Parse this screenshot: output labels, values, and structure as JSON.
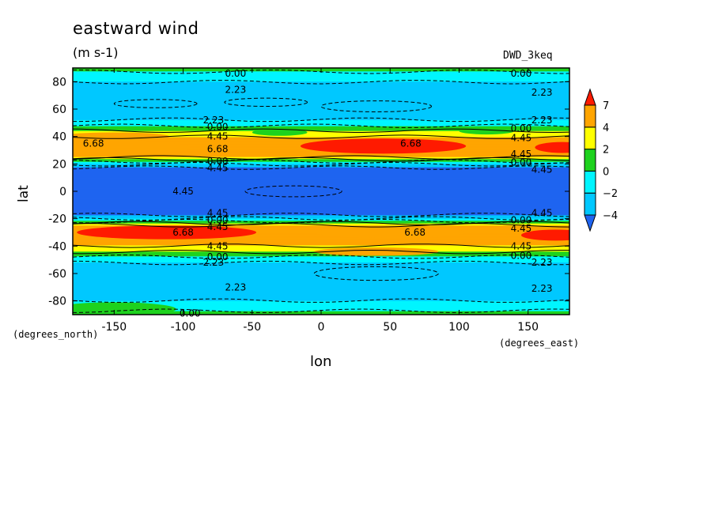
{
  "chart_data": {
    "type": "heatmap",
    "title": "eastward wind",
    "units": "(m s-1)",
    "run_label": "DWD_3keq",
    "xlabel": "lon",
    "ylabel": "lat",
    "x_units": "(degrees_east)",
    "y_units": "(degrees_north)",
    "xlim": [
      -180,
      180
    ],
    "ylim": [
      -90,
      90
    ],
    "x_ticks": [
      -150,
      -100,
      -50,
      0,
      50,
      100,
      150
    ],
    "y_ticks": [
      -80,
      -60,
      -40,
      -20,
      0,
      20,
      40,
      60,
      80
    ],
    "colorbar": {
      "levels": [
        -4,
        -2,
        0,
        2,
        4,
        7
      ],
      "colors": [
        "#1f64f0",
        "#00c8ff",
        "#00f5ff",
        "#1ed21e",
        "#ffff00",
        "#ffa500",
        "#ff1a00"
      ]
    },
    "zonal_profile": {
      "lat": [
        -90,
        -85,
        -80,
        -70,
        -60,
        -55,
        -50,
        -47,
        -45,
        -42,
        -38,
        -35,
        -30,
        -25,
        -22,
        -20,
        -17,
        -12,
        -5,
        0,
        5,
        12,
        17,
        20,
        22,
        25,
        30,
        35,
        38,
        42,
        45,
        47,
        50,
        55,
        60,
        70,
        80,
        85,
        90
      ],
      "value": [
        0.5,
        -0.5,
        -2.0,
        -2.5,
        -3.2,
        -3.0,
        -1.2,
        0.3,
        1.5,
        3.0,
        4.6,
        5.8,
        6.4,
        4.0,
        0.5,
        -2.0,
        -4.3,
        -4.8,
        -5.0,
        -5.0,
        -5.0,
        -4.8,
        -4.3,
        -2.0,
        0.5,
        4.0,
        6.4,
        5.8,
        4.6,
        3.0,
        1.5,
        0.3,
        -1.2,
        -3.0,
        -3.2,
        -2.5,
        -2.0,
        -0.5,
        0.5
      ]
    },
    "contour_labels": [
      {
        "text": "0.00",
        "lon": -62,
        "lat": 86
      },
      {
        "text": "0.00",
        "lon": 145,
        "lat": 86
      },
      {
        "text": "2.23",
        "lon": -62,
        "lat": 74
      },
      {
        "text": "2.23",
        "lon": 160,
        "lat": 72
      },
      {
        "text": "2.23",
        "lon": -78,
        "lat": 52
      },
      {
        "text": "2.23",
        "lon": 160,
        "lat": 52
      },
      {
        "text": "0.00",
        "lon": -75,
        "lat": 47
      },
      {
        "text": "0.00",
        "lon": 145,
        "lat": 46
      },
      {
        "text": "4.45",
        "lon": -75,
        "lat": 40
      },
      {
        "text": "4.45",
        "lon": 145,
        "lat": 39
      },
      {
        "text": "6.68",
        "lon": -165,
        "lat": 35
      },
      {
        "text": "6.68",
        "lon": 65,
        "lat": 35
      },
      {
        "text": "6.68",
        "lon": -75,
        "lat": 31
      },
      {
        "text": "4.45",
        "lon": 145,
        "lat": 27
      },
      {
        "text": "0.00",
        "lon": -75,
        "lat": 22
      },
      {
        "text": "0.00",
        "lon": 145,
        "lat": 21
      },
      {
        "text": "4.45",
        "lon": -75,
        "lat": 17
      },
      {
        "text": "4.45",
        "lon": 160,
        "lat": 16
      },
      {
        "text": "4.45",
        "lon": -100,
        "lat": 0
      },
      {
        "text": "4.45",
        "lon": -75,
        "lat": -16
      },
      {
        "text": "4.45",
        "lon": 160,
        "lat": -16
      },
      {
        "text": "0.00",
        "lon": -75,
        "lat": -21
      },
      {
        "text": "0.00",
        "lon": 145,
        "lat": -21
      },
      {
        "text": "4.45",
        "lon": -75,
        "lat": -26
      },
      {
        "text": "4.45",
        "lon": 145,
        "lat": -27
      },
      {
        "text": "6.68",
        "lon": -100,
        "lat": -30
      },
      {
        "text": "6.68",
        "lon": 68,
        "lat": -30
      },
      {
        "text": "4.45",
        "lon": -75,
        "lat": -40
      },
      {
        "text": "4.45",
        "lon": 145,
        "lat": -40
      },
      {
        "text": "0.00",
        "lon": -75,
        "lat": -48
      },
      {
        "text": "0.00",
        "lon": 145,
        "lat": -47
      },
      {
        "text": "2.23",
        "lon": -78,
        "lat": -52
      },
      {
        "text": "2.23",
        "lon": 160,
        "lat": -52
      },
      {
        "text": "2.23",
        "lon": -62,
        "lat": -70
      },
      {
        "text": "2.23",
        "lon": 160,
        "lat": -71
      },
      {
        "text": "0.00",
        "lon": -95,
        "lat": -89
      }
    ]
  }
}
